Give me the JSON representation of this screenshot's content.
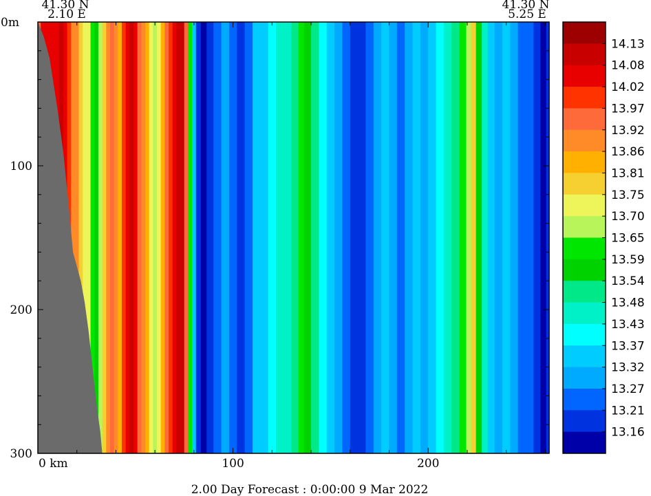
{
  "chart_data": {
    "type": "heatmap",
    "title": "2.00 Day Forecast :  0:00:00   9 Mar 2022",
    "start_point": {
      "lat": "41.30 N",
      "lon": "2.10 E"
    },
    "end_point": {
      "lat": "41.30 N",
      "lon": "5.25 E"
    },
    "xlabel": "km",
    "ylabel": "m",
    "xlim": [
      0,
      262
    ],
    "ylim": [
      0,
      300
    ],
    "y_inverted": true,
    "x_ticks": [
      {
        "value": 0,
        "label": "0 km"
      },
      {
        "value": 100,
        "label": "100"
      },
      {
        "value": 200,
        "label": "200"
      }
    ],
    "y_ticks": [
      {
        "value": 0,
        "label": "0m"
      },
      {
        "value": 100,
        "label": "100"
      },
      {
        "value": 200,
        "label": "200"
      },
      {
        "value": 300,
        "label": "300"
      }
    ],
    "land_color": "#6b6b6b",
    "land_boundary": [
      [
        0,
        0
      ],
      [
        3,
        10
      ],
      [
        6,
        25
      ],
      [
        10,
        60
      ],
      [
        13,
        90
      ],
      [
        16,
        130
      ],
      [
        18,
        160
      ],
      [
        22,
        180
      ],
      [
        24,
        195
      ],
      [
        26,
        215
      ],
      [
        28,
        240
      ],
      [
        30,
        265
      ],
      [
        32,
        285
      ],
      [
        33,
        300
      ]
    ],
    "colorbar": {
      "levels": [
        "14.13",
        "14.08",
        "14.02",
        "13.97",
        "13.92",
        "13.86",
        "13.81",
        "13.75",
        "13.70",
        "13.65",
        "13.59",
        "13.54",
        "13.48",
        "13.43",
        "13.37",
        "13.32",
        "13.27",
        "13.21",
        "13.16"
      ],
      "colors": [
        "#9c0000",
        "#c80000",
        "#e80000",
        "#ff3300",
        "#ff6a3a",
        "#ff8a28",
        "#ffb000",
        "#f5d030",
        "#eef55a",
        "#b8f55a",
        "#00e600",
        "#00d200",
        "#00e888",
        "#00f0c8",
        "#00ffff",
        "#00ccff",
        "#00aaff",
        "#0066ff",
        "#0033e0",
        "#0000a8"
      ]
    },
    "columns": [
      {
        "x": 0,
        "v": 13.95
      },
      {
        "x": 3,
        "v": 14.05
      },
      {
        "x": 6,
        "v": 14.02
      },
      {
        "x": 8,
        "v": 14.05
      },
      {
        "x": 10,
        "v": 14.05
      },
      {
        "x": 12,
        "v": 14.08
      },
      {
        "x": 14,
        "v": 14.04
      },
      {
        "x": 16,
        "v": 13.97
      },
      {
        "x": 18,
        "v": 13.9
      },
      {
        "x": 20,
        "v": 13.86
      },
      {
        "x": 22,
        "v": 13.78
      },
      {
        "x": 24,
        "v": 13.72
      },
      {
        "x": 26,
        "v": 13.7
      },
      {
        "x": 28,
        "v": 13.62
      },
      {
        "x": 30,
        "v": 13.58
      },
      {
        "x": 32,
        "v": 13.68
      },
      {
        "x": 34,
        "v": 13.8
      },
      {
        "x": 36,
        "v": 13.9
      },
      {
        "x": 38,
        "v": 13.95
      },
      {
        "x": 40,
        "v": 13.88
      },
      {
        "x": 42,
        "v": 13.84
      },
      {
        "x": 44,
        "v": 13.97
      },
      {
        "x": 46,
        "v": 14.04
      },
      {
        "x": 48,
        "v": 14.08
      },
      {
        "x": 50,
        "v": 14.02
      },
      {
        "x": 52,
        "v": 13.95
      },
      {
        "x": 54,
        "v": 13.88
      },
      {
        "x": 56,
        "v": 13.82
      },
      {
        "x": 58,
        "v": 13.73
      },
      {
        "x": 60,
        "v": 13.67
      },
      {
        "x": 62,
        "v": 13.74
      },
      {
        "x": 64,
        "v": 13.85
      },
      {
        "x": 66,
        "v": 13.93
      },
      {
        "x": 68,
        "v": 14.0
      },
      {
        "x": 70,
        "v": 14.06
      },
      {
        "x": 72,
        "v": 14.11
      },
      {
        "x": 74,
        "v": 14.08
      },
      {
        "x": 76,
        "v": 13.94
      },
      {
        "x": 78,
        "v": 13.62
      },
      {
        "x": 80,
        "v": 13.36
      },
      {
        "x": 82,
        "v": 13.2
      },
      {
        "x": 85,
        "v": 13.14
      },
      {
        "x": 88,
        "v": 13.18
      },
      {
        "x": 92,
        "v": 13.24
      },
      {
        "x": 96,
        "v": 13.3
      },
      {
        "x": 100,
        "v": 13.25
      },
      {
        "x": 104,
        "v": 13.2
      },
      {
        "x": 108,
        "v": 13.25
      },
      {
        "x": 112,
        "v": 13.32
      },
      {
        "x": 116,
        "v": 13.35
      },
      {
        "x": 120,
        "v": 13.4
      },
      {
        "x": 124,
        "v": 13.43
      },
      {
        "x": 128,
        "v": 13.46
      },
      {
        "x": 132,
        "v": 13.52
      },
      {
        "x": 135,
        "v": 13.6
      },
      {
        "x": 138,
        "v": 13.56
      },
      {
        "x": 142,
        "v": 13.48
      },
      {
        "x": 146,
        "v": 13.4
      },
      {
        "x": 150,
        "v": 13.33
      },
      {
        "x": 154,
        "v": 13.3
      },
      {
        "x": 158,
        "v": 13.24
      },
      {
        "x": 162,
        "v": 13.2
      },
      {
        "x": 166,
        "v": 13.16
      },
      {
        "x": 170,
        "v": 13.23
      },
      {
        "x": 174,
        "v": 13.3
      },
      {
        "x": 178,
        "v": 13.34
      },
      {
        "x": 182,
        "v": 13.28
      },
      {
        "x": 186,
        "v": 13.24
      },
      {
        "x": 190,
        "v": 13.3
      },
      {
        "x": 194,
        "v": 13.35
      },
      {
        "x": 198,
        "v": 13.29
      },
      {
        "x": 202,
        "v": 13.33
      },
      {
        "x": 206,
        "v": 13.38
      },
      {
        "x": 210,
        "v": 13.44
      },
      {
        "x": 214,
        "v": 13.52
      },
      {
        "x": 218,
        "v": 13.6
      },
      {
        "x": 221,
        "v": 13.68
      },
      {
        "x": 223,
        "v": 13.8
      },
      {
        "x": 226,
        "v": 13.58
      },
      {
        "x": 229,
        "v": 13.44
      },
      {
        "x": 232,
        "v": 13.35
      },
      {
        "x": 236,
        "v": 13.3
      },
      {
        "x": 240,
        "v": 13.32
      },
      {
        "x": 244,
        "v": 13.27
      },
      {
        "x": 248,
        "v": 13.22
      },
      {
        "x": 252,
        "v": 13.25
      },
      {
        "x": 256,
        "v": 13.2
      },
      {
        "x": 259,
        "v": 13.12
      },
      {
        "x": 262,
        "v": 13.16
      }
    ]
  }
}
